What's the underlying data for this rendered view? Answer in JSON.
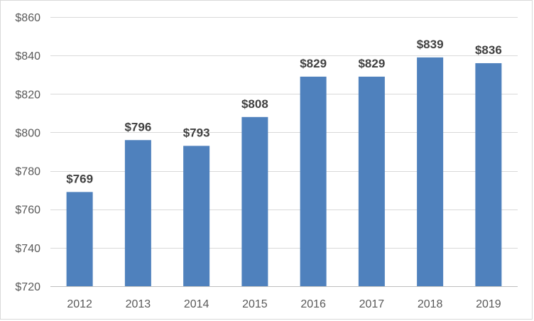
{
  "chart_data": {
    "type": "bar",
    "categories": [
      "2012",
      "2013",
      "2014",
      "2015",
      "2016",
      "2017",
      "2018",
      "2019"
    ],
    "values": [
      769,
      796,
      793,
      808,
      829,
      829,
      839,
      836
    ],
    "data_labels": [
      "$769",
      "$796",
      "$793",
      "$808",
      "$829",
      "$829",
      "$839",
      "$836"
    ],
    "title": "",
    "xlabel": "",
    "ylabel": "",
    "ylim": [
      720,
      860
    ],
    "yticks": [
      720,
      740,
      760,
      780,
      800,
      820,
      840,
      860
    ],
    "ytick_labels": [
      "$720",
      "$740",
      "$760",
      "$780",
      "$800",
      "$820",
      "$840",
      "$860"
    ],
    "grid": true,
    "legend": "none",
    "colors": {
      "bar": "#4f81bd",
      "grid": "#d9d9d9",
      "axis": "#bfbfbf",
      "tick_text": "#595959",
      "label_text": "#404040"
    }
  }
}
